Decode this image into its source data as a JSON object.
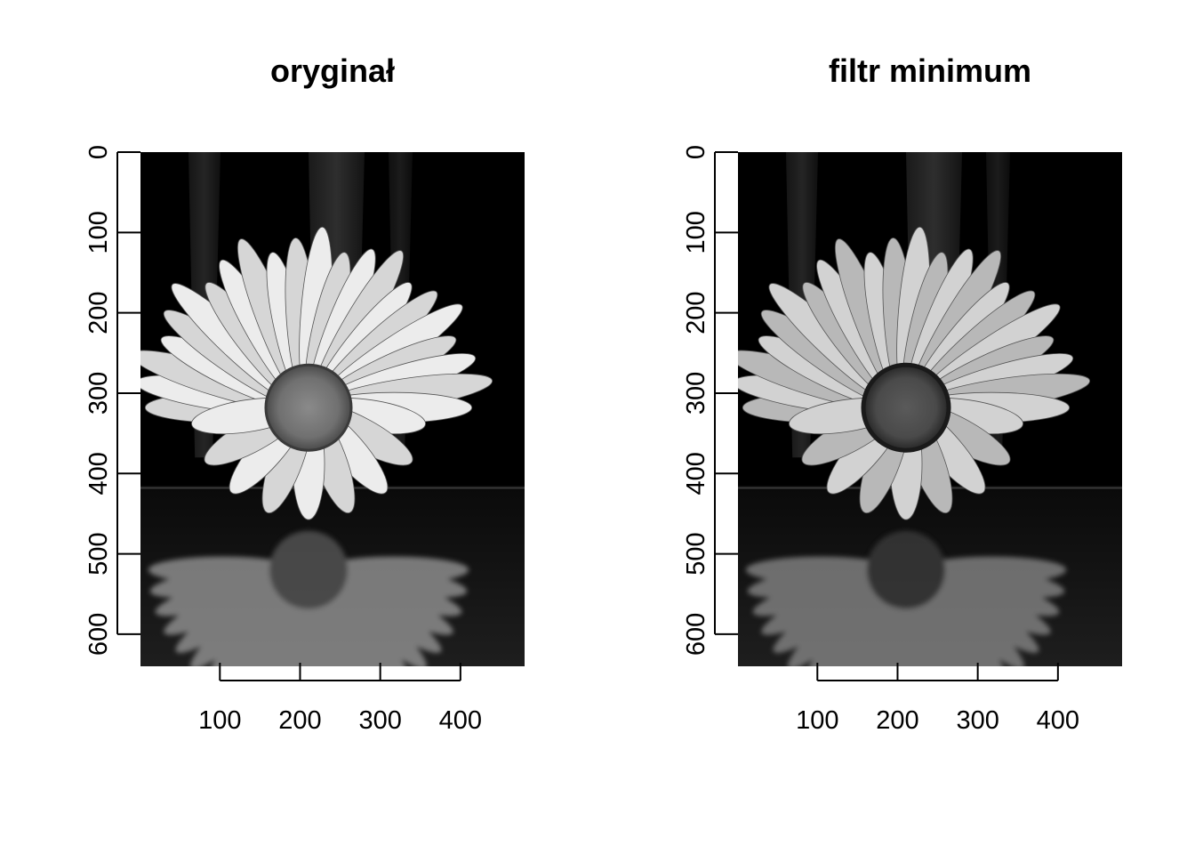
{
  "chart_data": [
    {
      "type": "image",
      "title": "oryginał",
      "xticks": [
        100,
        200,
        300,
        400
      ],
      "yticks": [
        0,
        100,
        200,
        300,
        400,
        500,
        600
      ],
      "xlim": [
        1,
        480
      ],
      "ylim": [
        0,
        640
      ],
      "image_content": "grayscale photo of daisy flower with reflection on dark background"
    },
    {
      "type": "image",
      "title": "filtr minimum",
      "xticks": [
        100,
        200,
        300,
        400
      ],
      "yticks": [
        0,
        100,
        200,
        300,
        400,
        500,
        600
      ],
      "xlim": [
        1,
        480
      ],
      "ylim": [
        0,
        640
      ],
      "image_content": "same daisy photo after minimum filter (darker, blocky center)"
    }
  ]
}
